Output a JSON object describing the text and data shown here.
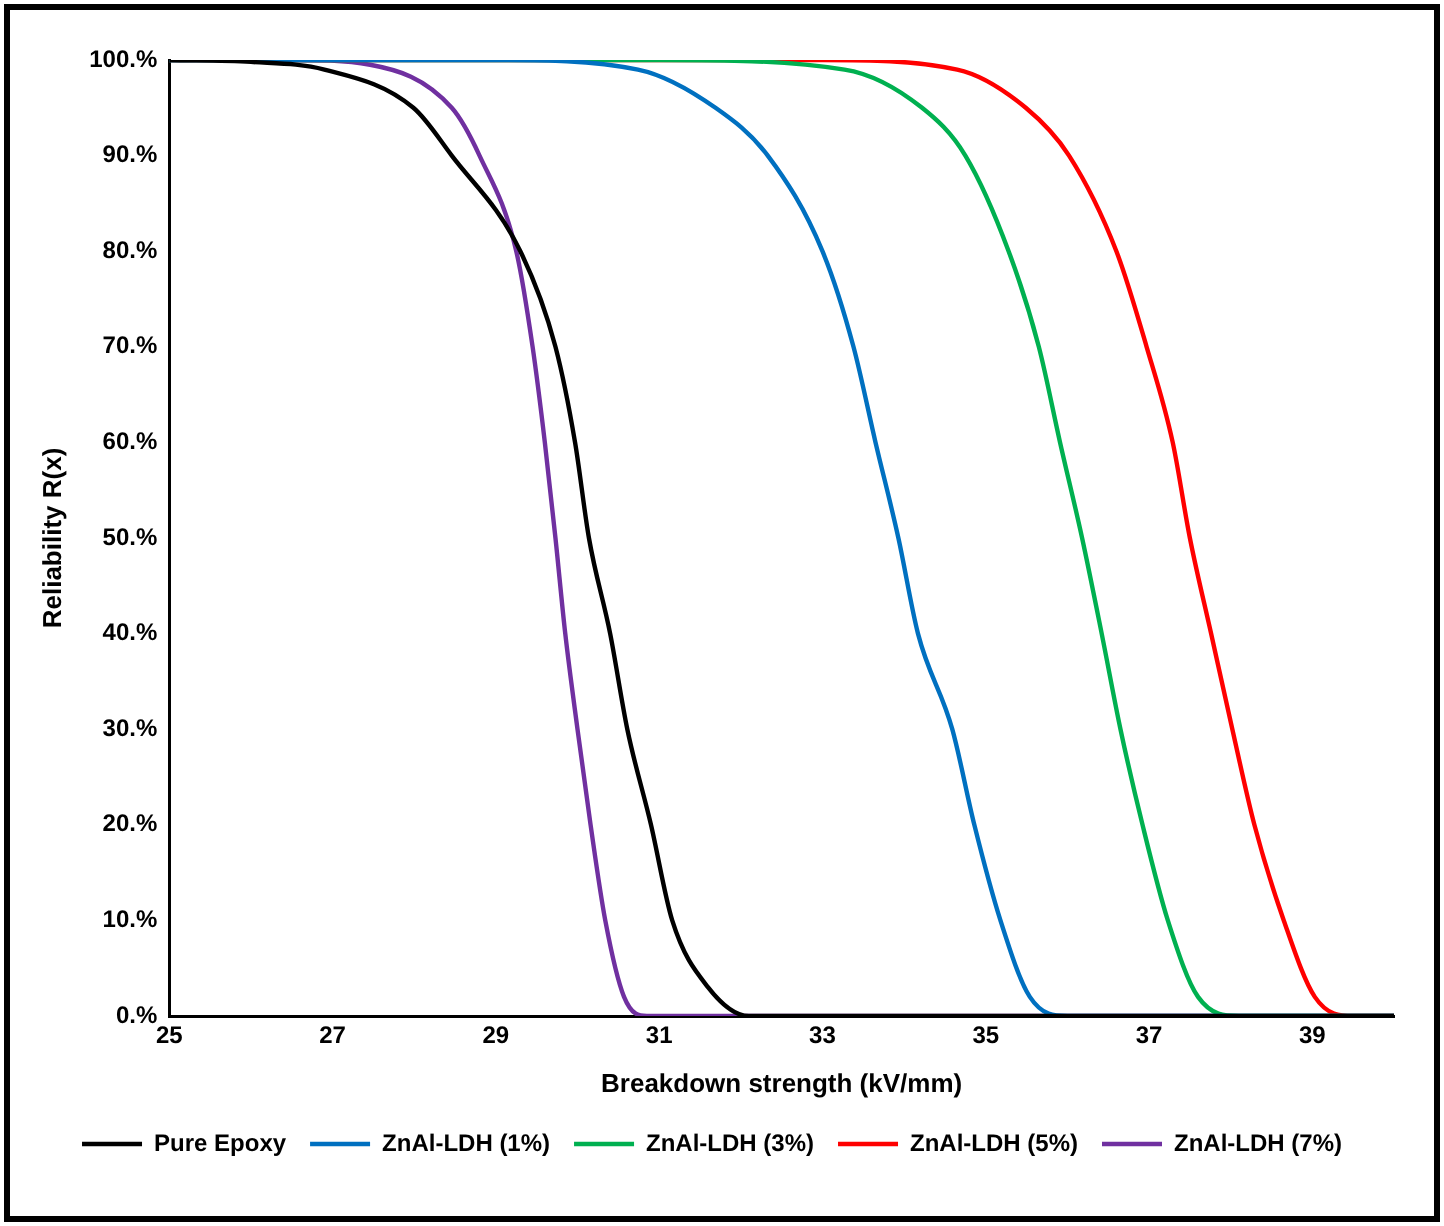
{
  "chart_data": {
    "type": "line",
    "xlabel": "Breakdown strength (kV/mm)",
    "ylabel": "Reliability R(x)",
    "xlim": [
      25,
      40
    ],
    "xticks": [
      25,
      27,
      29,
      31,
      33,
      35,
      37,
      39
    ],
    "ylim": [
      0,
      100
    ],
    "yticks": [
      {
        "value": 0,
        "label": "0.%"
      },
      {
        "value": 10,
        "label": "10.%"
      },
      {
        "value": 20,
        "label": "20.%"
      },
      {
        "value": 30,
        "label": "30.%"
      },
      {
        "value": 40,
        "label": "40.%"
      },
      {
        "value": 50,
        "label": "50.%"
      },
      {
        "value": 60,
        "label": "60.%"
      },
      {
        "value": 70,
        "label": "70.%"
      },
      {
        "value": 80,
        "label": "80.%"
      },
      {
        "value": 90,
        "label": "90.%"
      },
      {
        "value": 100,
        "label": "100.%"
      }
    ],
    "grid": false,
    "legend": "bottom",
    "marker": "none",
    "line_style": "solid",
    "series": [
      {
        "name": "Pure Epoxy",
        "color": "#000000",
        "x": [
          25,
          26,
          26.9,
          27.99,
          28.46,
          29.3,
          29.73,
          29.97,
          30.14,
          30.4,
          30.61,
          30.9,
          31.16,
          31.6,
          32.1,
          40
        ],
        "values": [
          100,
          99.8,
          99,
          95,
          90,
          80,
          70,
          60,
          50,
          40,
          30,
          20,
          10,
          3,
          0,
          0
        ]
      },
      {
        "name": "ZnAl-LDH (1%)",
        "color": "#0070c0",
        "x": [
          25,
          29,
          30.74,
          31.69,
          32.33,
          33,
          33.38,
          33.65,
          33.93,
          34.17,
          34.59,
          34.86,
          35.18,
          35.54,
          36,
          40
        ],
        "values": [
          100,
          100,
          99,
          95,
          90,
          80,
          70,
          60,
          50,
          40,
          30,
          20,
          10,
          2,
          0,
          0
        ]
      },
      {
        "name": "ZnAl-LDH (3%)",
        "color": "#00b050",
        "x": [
          25,
          31,
          33.27,
          34.22,
          34.75,
          35.28,
          35.65,
          35.91,
          36.18,
          36.42,
          36.65,
          36.92,
          37.23,
          37.6,
          38.1,
          40
        ],
        "values": [
          100,
          100,
          99,
          95,
          90,
          80,
          70,
          60,
          50,
          40,
          30,
          20,
          10,
          2,
          0,
          0
        ]
      },
      {
        "name": "ZnAl-LDH (5%)",
        "color": "#ff0000",
        "x": [
          25,
          33,
          34.65,
          35.49,
          36.02,
          36.6,
          36.97,
          37.29,
          37.5,
          37.76,
          38.02,
          38.29,
          38.65,
          39.03,
          39.5,
          40
        ],
        "values": [
          100,
          100,
          99,
          95,
          90,
          80,
          70,
          60,
          50,
          40,
          30,
          20,
          10,
          2,
          0,
          0
        ]
      },
      {
        "name": "ZnAl-LDH (7%)",
        "color": "#7030a0",
        "x": [
          25,
          26.5,
          27.46,
          28.46,
          28.8,
          29.25,
          29.45,
          29.6,
          29.73,
          29.85,
          30,
          30.16,
          30.34,
          30.57,
          30.85,
          40
        ],
        "values": [
          100,
          100,
          99.5,
          95,
          90,
          80,
          70,
          60,
          50,
          40,
          30,
          20,
          10,
          2,
          0,
          0
        ]
      }
    ]
  }
}
